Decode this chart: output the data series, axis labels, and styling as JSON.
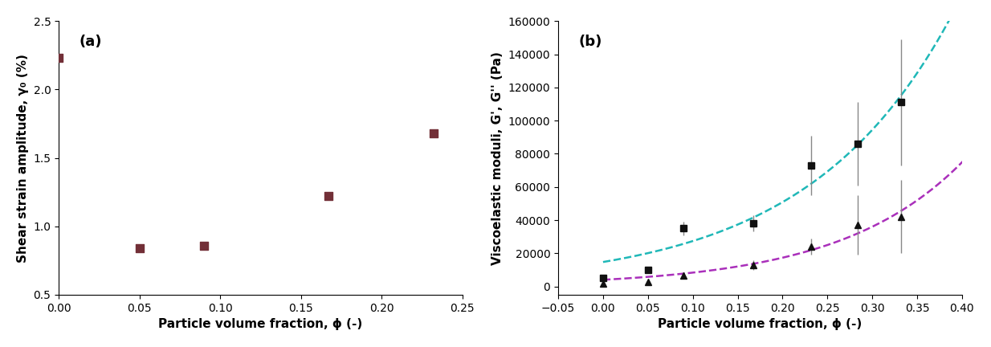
{
  "panel_a": {
    "title": "(a)",
    "xlabel": "Particle volume fraction, ϕ (-)",
    "ylabel": "Shear strain amplitude, γ₀ (%)",
    "xlim": [
      0,
      0.25
    ],
    "ylim": [
      0.5,
      2.5
    ],
    "xticks": [
      0.0,
      0.05,
      0.1,
      0.15,
      0.2,
      0.25
    ],
    "yticks": [
      0.5,
      1.0,
      1.5,
      2.0,
      2.5
    ],
    "x": [
      0.0,
      0.05,
      0.09,
      0.167,
      0.232
    ],
    "y": [
      2.23,
      0.84,
      0.86,
      1.22,
      1.68
    ],
    "marker_color": "#722F37",
    "marker": "s",
    "marker_size": 7
  },
  "panel_b": {
    "title": "(b)",
    "xlabel": "Particle volume fraction, ϕ (-)",
    "ylabel": "Viscoelastic moduli, G', G'' (Pa)",
    "xlim": [
      -0.05,
      0.4
    ],
    "ylim": [
      -5000,
      160000
    ],
    "xticks": [
      -0.05,
      0.0,
      0.05,
      0.1,
      0.15,
      0.2,
      0.25,
      0.3,
      0.35,
      0.4
    ],
    "yticks": [
      0,
      20000,
      40000,
      60000,
      80000,
      100000,
      120000,
      140000,
      160000
    ],
    "storage_x": [
      0.0,
      0.05,
      0.09,
      0.167,
      0.232,
      0.284,
      0.332
    ],
    "storage_y": [
      5000,
      10000,
      35000,
      38000,
      73000,
      86000,
      111000
    ],
    "storage_yerr": [
      800,
      1500,
      4000,
      5000,
      18000,
      25000,
      38000
    ],
    "loss_x": [
      0.0,
      0.05,
      0.09,
      0.167,
      0.232,
      0.284,
      0.332
    ],
    "loss_y": [
      1500,
      2500,
      6500,
      13000,
      24000,
      37000,
      42000
    ],
    "loss_yerr": [
      300,
      600,
      2000,
      3000,
      5000,
      18000,
      22000
    ],
    "storage_marker": "s",
    "loss_marker": "^",
    "marker_color": "#111111",
    "storage_fit_color": "#20B8B8",
    "loss_fit_color": "#AA30BB",
    "marker_size": 6,
    "fit_x_end": 0.405,
    "storage_fit_A": 1800000,
    "storage_fit_n": 2.35,
    "loss_fit_A": 280000,
    "loss_fit_n": 2.1
  },
  "figure_bgcolor": "#ffffff"
}
